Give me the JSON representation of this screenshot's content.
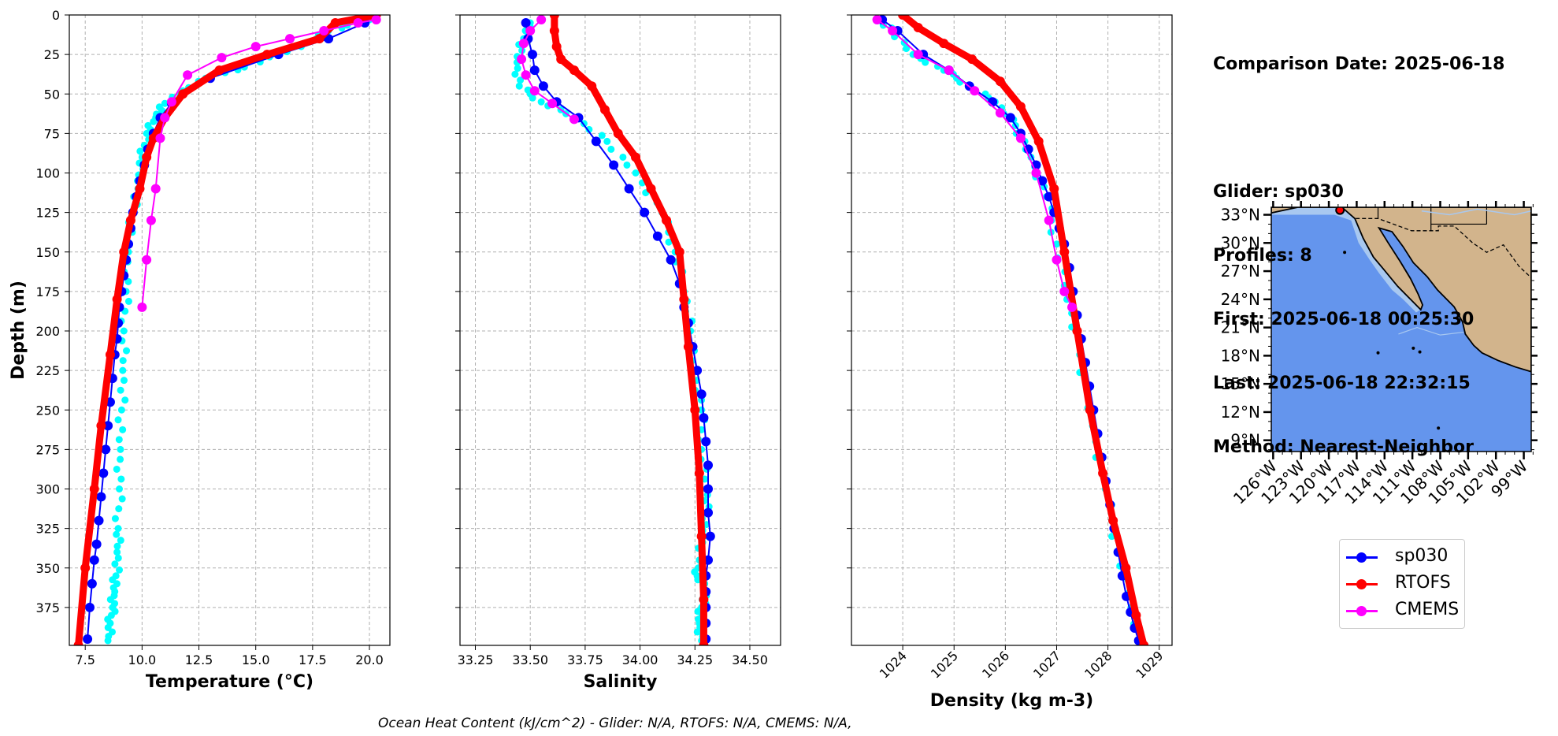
{
  "info": {
    "comparison_date": "Comparison Date: 2025-06-18",
    "glider": "Glider: sp030",
    "profiles": "Profiles: 8",
    "first": "First: 2025-06-18 00:25:30",
    "last": "Last: 2025-06-18 22:32:15",
    "method": "Method: Nearest-Neighbor"
  },
  "footer": "Ocean Heat Content (kJ/cm^2) - Glider: N/A,  RTOFS: N/A,  CMEMS: N/A,",
  "legend": [
    {
      "label": "sp030",
      "color": "#0000ff"
    },
    {
      "label": "RTOFS",
      "color": "#ff0000"
    },
    {
      "label": "CMEMS",
      "color": "#ff00ff"
    }
  ],
  "colors": {
    "glider_raw": "#00ffff",
    "glider": "#0000ff",
    "rtofs": "#ff0000",
    "cmems": "#ff00ff",
    "grid": "#b0b0b0",
    "ocean": "#6495ed",
    "shelf": "#a8c8f0",
    "land": "#d2b48c"
  },
  "chart_data": [
    {
      "type": "line",
      "xlabel": "Temperature (°C)",
      "ylabel": "Depth (m)",
      "xlim": [
        6.8,
        20.9
      ],
      "ylim": [
        399,
        0
      ],
      "xticks": [
        "7.5",
        "10.0",
        "12.5",
        "15.0",
        "17.5",
        "20.0"
      ],
      "xtick_values": [
        7.5,
        10,
        12.5,
        15,
        17.5,
        20
      ],
      "yticks": [
        "0",
        "25",
        "50",
        "75",
        "100",
        "125",
        "150",
        "175",
        "200",
        "225",
        "250",
        "275",
        "300",
        "325",
        "350",
        "375"
      ],
      "ytick_values": [
        0,
        25,
        50,
        75,
        100,
        125,
        150,
        175,
        200,
        225,
        250,
        275,
        300,
        325,
        350,
        375
      ],
      "grid": true,
      "series": [
        {
          "name": "sp030 raw",
          "style": "raw",
          "x": [
            20.0,
            18.2,
            17.0,
            14.5,
            12.8,
            11.8,
            11.0,
            10.6,
            10.2,
            10.0,
            9.8,
            9.6,
            9.4,
            9.3,
            9.2,
            9.15,
            9.1,
            9.05,
            9.0,
            8.95,
            8.9,
            8.85,
            8.8,
            8.7,
            8.6,
            8.5
          ],
          "y": [
            3,
            10,
            20,
            33,
            40,
            48,
            56,
            65,
            75,
            90,
            105,
            125,
            150,
            175,
            200,
            225,
            250,
            275,
            300,
            325,
            340,
            355,
            365,
            375,
            385,
            396
          ]
        },
        {
          "name": "sp030",
          "style": "glider",
          "x": [
            19.8,
            18.2,
            16.0,
            13.0,
            11.3,
            10.8,
            10.5,
            10.25,
            10.1,
            9.9,
            9.75,
            9.6,
            9.5,
            9.4,
            9.3,
            9.2,
            9.1,
            9.0,
            8.95,
            8.9,
            8.8,
            8.7,
            8.6,
            8.5,
            8.4,
            8.3,
            8.2,
            8.1,
            8.0,
            7.9,
            7.8,
            7.7,
            7.6
          ],
          "y": [
            5,
            15,
            25,
            40,
            56,
            65,
            75,
            85,
            95,
            105,
            115,
            125,
            135,
            145,
            155,
            165,
            175,
            185,
            195,
            205,
            215,
            230,
            245,
            260,
            275,
            290,
            305,
            320,
            335,
            345,
            360,
            375,
            395
          ]
        },
        {
          "name": "RTOFS",
          "style": "rtofs",
          "x": [
            20.3,
            18.5,
            17.8,
            15.5,
            13.4,
            11.8,
            11.0,
            10.5,
            10.2,
            9.9,
            9.5,
            9.2,
            8.9,
            8.6,
            8.2,
            7.9,
            7.5,
            7.2
          ],
          "y": [
            0,
            5,
            15,
            25,
            35,
            50,
            65,
            78,
            90,
            110,
            130,
            150,
            180,
            215,
            260,
            300,
            350,
            399
          ]
        },
        {
          "name": "CMEMS",
          "style": "cmems",
          "x": [
            20.3,
            19.5,
            18.0,
            16.5,
            15.0,
            13.5,
            12.0,
            11.3,
            11.0,
            10.8,
            10.6,
            10.4,
            10.2,
            10.0
          ],
          "y": [
            3,
            5,
            10,
            15,
            20,
            27,
            38,
            55,
            65,
            78,
            110,
            130,
            155,
            185
          ]
        }
      ]
    },
    {
      "type": "line",
      "xlabel": "Salinity",
      "ylabel": "",
      "xlim": [
        33.18,
        34.64
      ],
      "ylim": [
        399,
        0
      ],
      "xticks": [
        "33.25",
        "33.50",
        "33.75",
        "34.00",
        "34.25",
        "34.50"
      ],
      "xtick_values": [
        33.25,
        33.5,
        33.75,
        34.0,
        34.25,
        34.5
      ],
      "yticks": [],
      "ytick_values": [
        0,
        25,
        50,
        75,
        100,
        125,
        150,
        175,
        200,
        225,
        250,
        275,
        300,
        325,
        350,
        375
      ],
      "grid": true,
      "series": [
        {
          "name": "sp030 raw",
          "style": "raw",
          "x": [
            33.5,
            33.47,
            33.44,
            33.45,
            33.55,
            33.7,
            33.85,
            33.98,
            34.1,
            34.16,
            34.2,
            34.23,
            34.25,
            34.28,
            34.28,
            34.3,
            34.3,
            34.29,
            34.27,
            34.26,
            34.3,
            34.28,
            34.27,
            34.28
          ],
          "y": [
            5,
            15,
            30,
            45,
            55,
            65,
            80,
            100,
            125,
            150,
            175,
            200,
            225,
            250,
            275,
            300,
            315,
            330,
            345,
            355,
            365,
            375,
            385,
            396
          ]
        },
        {
          "name": "sp030",
          "style": "glider",
          "x": [
            33.48,
            33.49,
            33.51,
            33.52,
            33.56,
            33.62,
            33.72,
            33.8,
            33.88,
            33.95,
            34.02,
            34.08,
            34.14,
            34.18,
            34.2,
            34.22,
            34.24,
            34.26,
            34.28,
            34.29,
            34.3,
            34.31,
            34.31,
            34.31,
            34.32,
            34.31,
            34.3,
            34.3,
            34.3,
            34.3,
            34.3
          ],
          "y": [
            5,
            15,
            25,
            35,
            45,
            55,
            65,
            80,
            95,
            110,
            125,
            140,
            155,
            170,
            185,
            195,
            210,
            225,
            240,
            255,
            270,
            285,
            300,
            315,
            330,
            345,
            355,
            365,
            375,
            385,
            395
          ]
        },
        {
          "name": "RTOFS",
          "style": "rtofs",
          "x": [
            33.61,
            33.61,
            33.62,
            33.64,
            33.7,
            33.78,
            33.84,
            33.9,
            33.98,
            34.05,
            34.12,
            34.18,
            34.2,
            34.22,
            34.25,
            34.27,
            34.28,
            34.29,
            34.29
          ],
          "y": [
            0,
            10,
            20,
            28,
            35,
            45,
            60,
            75,
            90,
            110,
            130,
            150,
            180,
            210,
            250,
            290,
            330,
            370,
            399
          ]
        },
        {
          "name": "CMEMS",
          "style": "cmems",
          "x": [
            33.55,
            33.5,
            33.47,
            33.46,
            33.48,
            33.52,
            33.6,
            33.7
          ],
          "y": [
            3,
            10,
            18,
            28,
            38,
            48,
            56,
            66
          ]
        }
      ]
    },
    {
      "type": "line",
      "xlabel": "Density (kg m-3)",
      "ylabel": "",
      "xlim": [
        1023.0,
        1029.25
      ],
      "ylim": [
        399,
        0
      ],
      "xticks": [
        "1024",
        "1025",
        "1026",
        "1027",
        "1028",
        "1029"
      ],
      "xtick_values": [
        1024,
        1025,
        1026,
        1027,
        1028,
        1029
      ],
      "yticks": [],
      "ytick_values": [
        0,
        25,
        50,
        75,
        100,
        125,
        150,
        175,
        200,
        225,
        250,
        275,
        300,
        325,
        350,
        375
      ],
      "grid": true,
      "series": [
        {
          "name": "sp030 raw",
          "style": "raw",
          "x": [
            1023.5,
            1023.8,
            1024.2,
            1024.8,
            1025.3,
            1025.8,
            1026.2,
            1026.5,
            1026.8,
            1027.0,
            1027.2,
            1027.45,
            1027.7,
            1027.95,
            1028.2,
            1028.45,
            1028.62
          ],
          "y": [
            3,
            10,
            25,
            35,
            45,
            55,
            70,
            90,
            115,
            145,
            180,
            215,
            260,
            300,
            340,
            375,
            396
          ]
        },
        {
          "name": "sp030",
          "style": "glider",
          "x": [
            1023.6,
            1023.9,
            1024.4,
            1024.9,
            1025.3,
            1025.75,
            1026.1,
            1026.3,
            1026.45,
            1026.6,
            1026.72,
            1026.85,
            1026.95,
            1027.05,
            1027.15,
            1027.25,
            1027.32,
            1027.4,
            1027.48,
            1027.56,
            1027.64,
            1027.72,
            1027.8,
            1027.88,
            1027.96,
            1028.04,
            1028.12,
            1028.2,
            1028.28,
            1028.36,
            1028.44,
            1028.52,
            1028.6
          ],
          "y": [
            3,
            10,
            25,
            35,
            45,
            55,
            65,
            75,
            85,
            95,
            105,
            115,
            125,
            135,
            145,
            160,
            175,
            190,
            205,
            220,
            235,
            250,
            265,
            280,
            295,
            310,
            325,
            340,
            355,
            368,
            378,
            388,
            396
          ]
        },
        {
          "name": "RTOFS",
          "style": "rtofs",
          "x": [
            1024.0,
            1024.3,
            1024.8,
            1025.35,
            1025.9,
            1026.3,
            1026.65,
            1026.95,
            1027.15,
            1027.4,
            1027.65,
            1027.9,
            1028.1,
            1028.35,
            1028.55,
            1028.7
          ],
          "y": [
            0,
            8,
            18,
            28,
            42,
            58,
            80,
            110,
            150,
            200,
            250,
            290,
            320,
            350,
            380,
            399
          ]
        },
        {
          "name": "CMEMS",
          "style": "cmems",
          "x": [
            1023.5,
            1023.8,
            1024.3,
            1024.9,
            1025.4,
            1025.9,
            1026.3,
            1026.6,
            1026.85,
            1027.0,
            1027.15,
            1027.3
          ],
          "y": [
            3,
            10,
            25,
            35,
            48,
            62,
            78,
            100,
            130,
            155,
            175,
            185
          ]
        }
      ]
    },
    {
      "type": "map",
      "xticks": [
        "126°W",
        "123°W",
        "120°W",
        "117°W",
        "114°W",
        "111°W",
        "108°W",
        "105°W",
        "102°W",
        "99°W"
      ],
      "xtick_values": [
        -126,
        -123,
        -120,
        -117,
        -114,
        -111,
        -108,
        -105,
        -102,
        -99
      ],
      "yticks": [
        "33°N",
        "30°N",
        "27°N",
        "24°N",
        "21°N",
        "18°N",
        "15°N",
        "12°N",
        "9°N"
      ],
      "ytick_values": [
        33,
        30,
        27,
        24,
        21,
        18,
        15,
        12,
        9
      ],
      "lon_range": [
        -126.2,
        -98.2
      ],
      "lat_range": [
        7.8,
        33.8
      ],
      "glider_position": {
        "lon": -118.8,
        "lat": 33.5
      }
    }
  ]
}
